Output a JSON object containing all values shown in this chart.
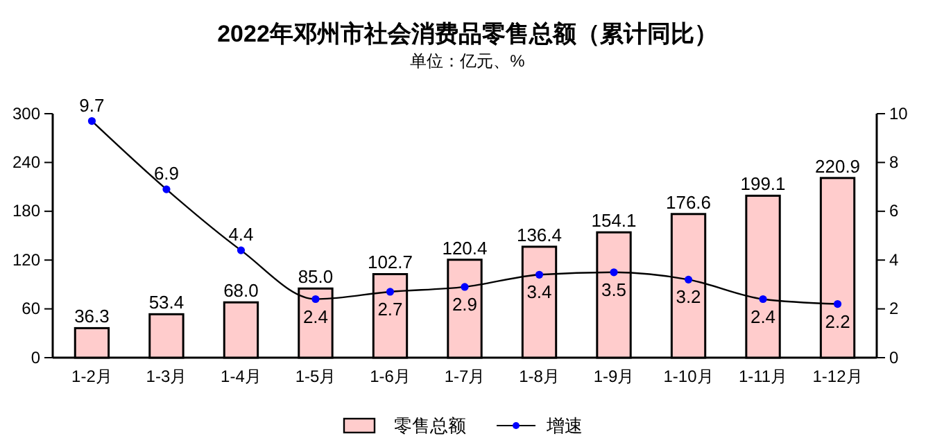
{
  "chart_data": {
    "type": "bar",
    "title": "2022年邓州市社会消费品零售总额（累计同比）",
    "subtitle": "单位：亿元、%",
    "categories": [
      "1-2月",
      "1-3月",
      "1-4月",
      "1-5月",
      "1-6月",
      "1-7月",
      "1-8月",
      "1-9月",
      "1-10月",
      "1-11月",
      "1-12月"
    ],
    "series": [
      {
        "name": "零售总额",
        "color": "#ffcccc",
        "values": [
          36.3,
          53.4,
          68.0,
          85.0,
          102.7,
          120.4,
          136.4,
          154.1,
          176.6,
          199.1,
          220.9
        ],
        "value_labels": [
          "36.3",
          "53.4",
          "68.0",
          "85.0",
          "102.7",
          "120.4",
          "136.4",
          "154.1",
          "176.6",
          "199.1",
          "220.9"
        ]
      },
      {
        "name": "增速",
        "type": "line",
        "axis": "y2",
        "color": "#000000",
        "marker": "circle",
        "values": [
          9.7,
          6.9,
          4.4,
          2.4,
          2.7,
          2.9,
          3.4,
          3.5,
          3.2,
          2.4,
          2.2
        ],
        "value_labels": [
          "9.7",
          "6.9",
          "4.4",
          "2.4",
          "2.7",
          "2.9",
          "3.4",
          "3.5",
          "3.2",
          "2.4",
          "2.2"
        ]
      }
    ],
    "ylim": [
      0,
      300
    ],
    "yticks": [
      0,
      60,
      120,
      180,
      240,
      300
    ],
    "y2lim": [
      0,
      10
    ],
    "y2ticks": [
      0,
      2,
      4,
      6,
      8,
      10
    ],
    "grid": false,
    "legend": "bottom"
  }
}
